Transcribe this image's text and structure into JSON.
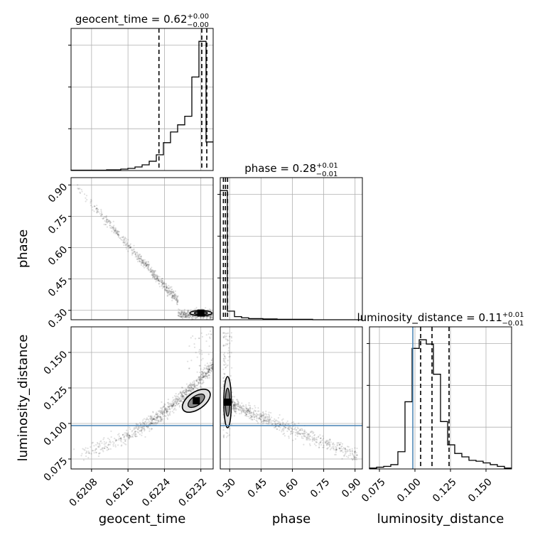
{
  "chart_data": {
    "type": "scatter",
    "style": "corner-plot",
    "parameters": [
      "geocent_time",
      "phase",
      "luminosity_distance"
    ],
    "titles": [
      {
        "prefix": "geocent_time = ",
        "value": "0.62",
        "plus": "+0.00",
        "minus": "−0.00"
      },
      {
        "prefix": "phase = ",
        "value": "0.28",
        "plus": "+0.01",
        "minus": "−0.01"
      },
      {
        "prefix": "luminosity_distance = ",
        "value": "0.11",
        "plus": "+0.01",
        "minus": "−0.01"
      }
    ],
    "axis_labels": {
      "x": [
        "geocent_time",
        "phase",
        "luminosity_distance"
      ],
      "y": [
        "",
        "phase",
        "luminosity_distance"
      ]
    },
    "ranges": {
      "geocent_time": [
        0.62035,
        0.62347
      ],
      "phase": [
        0.255,
        0.935
      ],
      "luminosity_distance": [
        0.068,
        0.168
      ]
    },
    "ticks": {
      "geocent_time": [
        {
          "v": 0.6208,
          "label": "0.6208"
        },
        {
          "v": 0.6216,
          "label": "0.6216"
        },
        {
          "v": 0.6224,
          "label": "0.6224"
        },
        {
          "v": 0.6232,
          "label": "0.6232"
        }
      ],
      "phase": [
        {
          "v": 0.3,
          "label": "0.30"
        },
        {
          "v": 0.45,
          "label": "0.45"
        },
        {
          "v": 0.6,
          "label": "0.60"
        },
        {
          "v": 0.75,
          "label": "0.75"
        },
        {
          "v": 0.9,
          "label": "0.90"
        }
      ],
      "luminosity_distance": [
        {
          "v": 0.075,
          "label": "0.075"
        },
        {
          "v": 0.1,
          "label": "0.100"
        },
        {
          "v": 0.125,
          "label": "0.125"
        },
        {
          "v": 0.15,
          "label": "0.150"
        }
      ]
    },
    "histograms": {
      "geocent_time": {
        "edges": [
          0.62035,
          0.620506,
          0.620662,
          0.620818,
          0.620974,
          0.62113,
          0.621286,
          0.621442,
          0.621598,
          0.621754,
          0.62191,
          0.622066,
          0.622222,
          0.622378,
          0.622534,
          0.62269,
          0.622846,
          0.623002,
          0.623158,
          0.623314,
          0.62347
        ],
        "counts": [
          1,
          1,
          1,
          1,
          1,
          2,
          2,
          4,
          6,
          10,
          16,
          26,
          44,
          78,
          108,
          128,
          152,
          262,
          362,
          80
        ],
        "quantiles": [
          0.62228,
          0.62322,
          0.62333
        ]
      },
      "phase": {
        "edges": [
          0.255,
          0.289,
          0.323,
          0.357,
          0.391,
          0.425,
          0.459,
          0.493,
          0.527,
          0.561,
          0.595,
          0.629,
          0.663,
          0.697,
          0.731,
          0.765,
          0.799,
          0.833,
          0.867,
          0.901,
          0.935
        ],
        "counts": [
          330,
          22,
          8,
          5,
          3,
          3,
          2,
          2,
          1,
          1,
          1,
          1,
          1,
          0,
          0,
          0,
          0,
          0,
          0,
          0
        ],
        "quantiles": [
          0.27,
          0.28,
          0.29
        ]
      },
      "luminosity_distance": {
        "edges": [
          0.068,
          0.073,
          0.078,
          0.083,
          0.088,
          0.093,
          0.098,
          0.103,
          0.108,
          0.113,
          0.118,
          0.123,
          0.128,
          0.133,
          0.138,
          0.143,
          0.148,
          0.153,
          0.158,
          0.163,
          0.168
        ],
        "counts": [
          1,
          2,
          3,
          5,
          20,
          78,
          140,
          150,
          145,
          110,
          55,
          28,
          18,
          14,
          10,
          9,
          7,
          5,
          3,
          1
        ],
        "quantiles": [
          0.104,
          0.112,
          0.124
        ]
      }
    },
    "truths": {
      "luminosity_distance": 0.0985
    },
    "truth_color": "#4682b4",
    "hist_color": "#000000",
    "grid": true
  }
}
